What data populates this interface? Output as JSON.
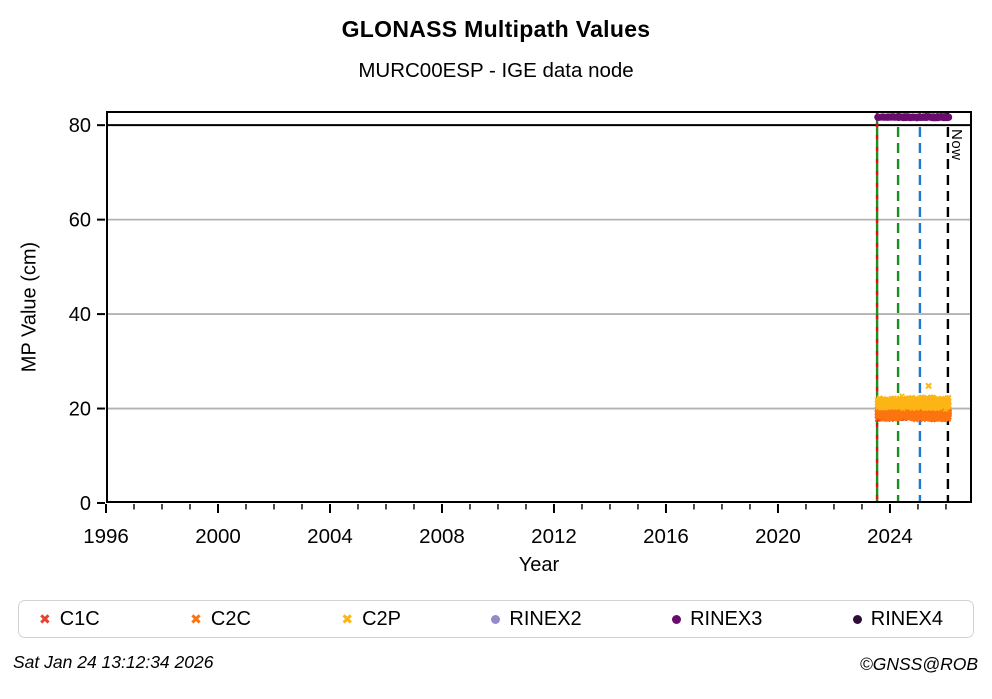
{
  "header": {
    "title": "GLONASS Multipath Values",
    "subtitle": "MURC00ESP - IGE data node"
  },
  "footer": {
    "timestamp": "Sat Jan 24 13:12:34 2026",
    "credit": "©GNSS@ROB"
  },
  "chart_data": {
    "type": "scatter",
    "title": "GLONASS Multipath Values",
    "subtitle": "MURC00ESP - IGE data node",
    "xlabel": "Year",
    "ylabel": "MP Value (cm)",
    "xlim": [
      1996,
      2026.93
    ],
    "ylim": [
      0,
      83
    ],
    "xticks": [
      1996,
      2000,
      2004,
      2008,
      2012,
      2016,
      2020,
      2024
    ],
    "minor_xtick_step": 1,
    "yticks": [
      0,
      20,
      40,
      60,
      80
    ],
    "gridlines_y": [
      20,
      40,
      60
    ],
    "grid_color": "#b2b2b2",
    "hline": {
      "y": 80,
      "color": "#000000"
    },
    "legend_position": "bottom",
    "series": [
      {
        "name": "C1C",
        "marker": "x",
        "color": "#e5422f",
        "band": {
          "x_start": 2023.54,
          "x_end": 2026.12,
          "y_mean": 18.8,
          "y_spread": 1.3
        }
      },
      {
        "name": "C2C",
        "marker": "x",
        "color": "#fb7410",
        "band": {
          "x_start": 2023.54,
          "x_end": 2026.12,
          "y_mean": 18.8,
          "y_spread": 1.4
        }
      },
      {
        "name": "C2P",
        "marker": "x",
        "color": "#fdb515",
        "band": {
          "x_start": 2023.54,
          "x_end": 2026.12,
          "y_mean": 21.2,
          "y_spread": 1.5
        },
        "outliers": [
          [
            2025.38,
            24.8
          ]
        ]
      },
      {
        "name": "RINEX2",
        "marker": "dot",
        "color": "#8f8cc9",
        "band": null
      },
      {
        "name": "RINEX3",
        "marker": "dot",
        "color": "#690c6e",
        "band": {
          "x_start": 2023.54,
          "x_end": 2026.12,
          "y_mean": 81.7,
          "y_spread": 0.25
        }
      },
      {
        "name": "RINEX4",
        "marker": "dot",
        "color": "#2d0c36",
        "band": null
      }
    ],
    "vlines": [
      {
        "x": 2023.54,
        "color": "#1e8c23",
        "style": "solid",
        "label": ""
      },
      {
        "x": 2023.54,
        "color": "#d41a10",
        "style": "dashed-fine",
        "label": ""
      },
      {
        "x": 2024.29,
        "color": "#1e8c23",
        "style": "dashed",
        "label": ""
      },
      {
        "x": 2025.07,
        "color": "#1e78cc",
        "style": "dashed",
        "label": ""
      },
      {
        "x": 2026.07,
        "color": "#000000",
        "style": "dashed",
        "label": "Now"
      }
    ],
    "now_label": "Now"
  }
}
